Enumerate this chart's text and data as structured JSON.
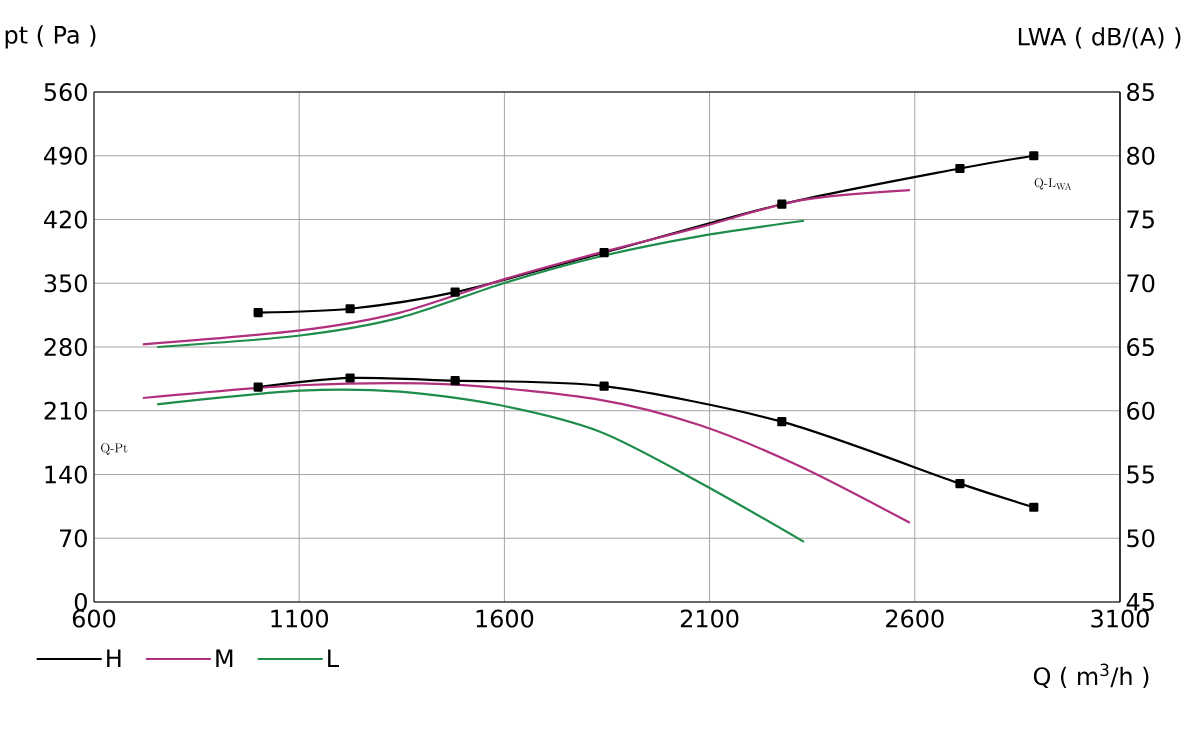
{
  "chart_data": {
    "type": "line",
    "xlabel": "Q ( m$^{3}$/h )",
    "ylabel": "pt ( Pa )",
    "y2label": "LWA ( dB/(A) )",
    "xlim": [
      600,
      3100
    ],
    "xticks": [
      600,
      1100,
      1600,
      2100,
      2600,
      3100
    ],
    "ylim": [
      0,
      560
    ],
    "yticks": [
      0,
      70,
      140,
      210,
      280,
      350,
      420,
      490,
      560
    ],
    "y2lim": [
      45,
      85
    ],
    "y2ticks": [
      45,
      50,
      55,
      60,
      65,
      70,
      75,
      80,
      85
    ],
    "grid": true,
    "legend": "bottom left",
    "annotations": [
      "Q-Pt",
      "Q-L$_{WA}$"
    ],
    "series": [
      {
        "name": "H",
        "color": "#000000",
        "marker": "square",
        "x": [
          1000,
          1224,
          1480,
          1843,
          2276,
          2710,
          2890
        ],
        "values": [
          236,
          246,
          243,
          237,
          198,
          130,
          104
        ]
      },
      {
        "name": "M",
        "color": "#b0307f",
        "marker": "none",
        "x": [
          719,
          1102,
          1467,
          1833,
          2077,
          2320,
          2588
        ],
        "values": [
          224,
          238,
          239,
          222,
          194,
          149,
          87
        ]
      },
      {
        "name": "L",
        "color": "#1e8c4a",
        "marker": "none",
        "x": [
          754,
          1102,
          1346,
          1590,
          1833,
          2077,
          2330
        ],
        "values": [
          217,
          232,
          231,
          216,
          187,
          131,
          66
        ]
      },
      {
        "color": "#000000",
        "marker": "square",
        "axis": "y2",
        "x": [
          1000,
          1224,
          1480,
          1843,
          2276,
          2710,
          2890
        ],
        "values": [
          67.7,
          68.0,
          69.3,
          72.4,
          76.2,
          79.0,
          80.0
        ]
      },
      {
        "color": "#b0307f",
        "marker": "none",
        "axis": "y2",
        "x": [
          719,
          1102,
          1346,
          1598,
          1833,
          2077,
          2320,
          2588
        ],
        "values": [
          65.2,
          66.3,
          67.7,
          70.3,
          72.4,
          74.4,
          76.5,
          77.3
        ]
      },
      {
        "color": "#1e8c4a",
        "marker": "none",
        "axis": "y2",
        "x": [
          754,
          1102,
          1346,
          1598,
          1833,
          2077,
          2330
        ],
        "values": [
          65.0,
          65.9,
          67.3,
          70.0,
          72.1,
          73.7,
          74.9
        ]
      }
    ]
  }
}
